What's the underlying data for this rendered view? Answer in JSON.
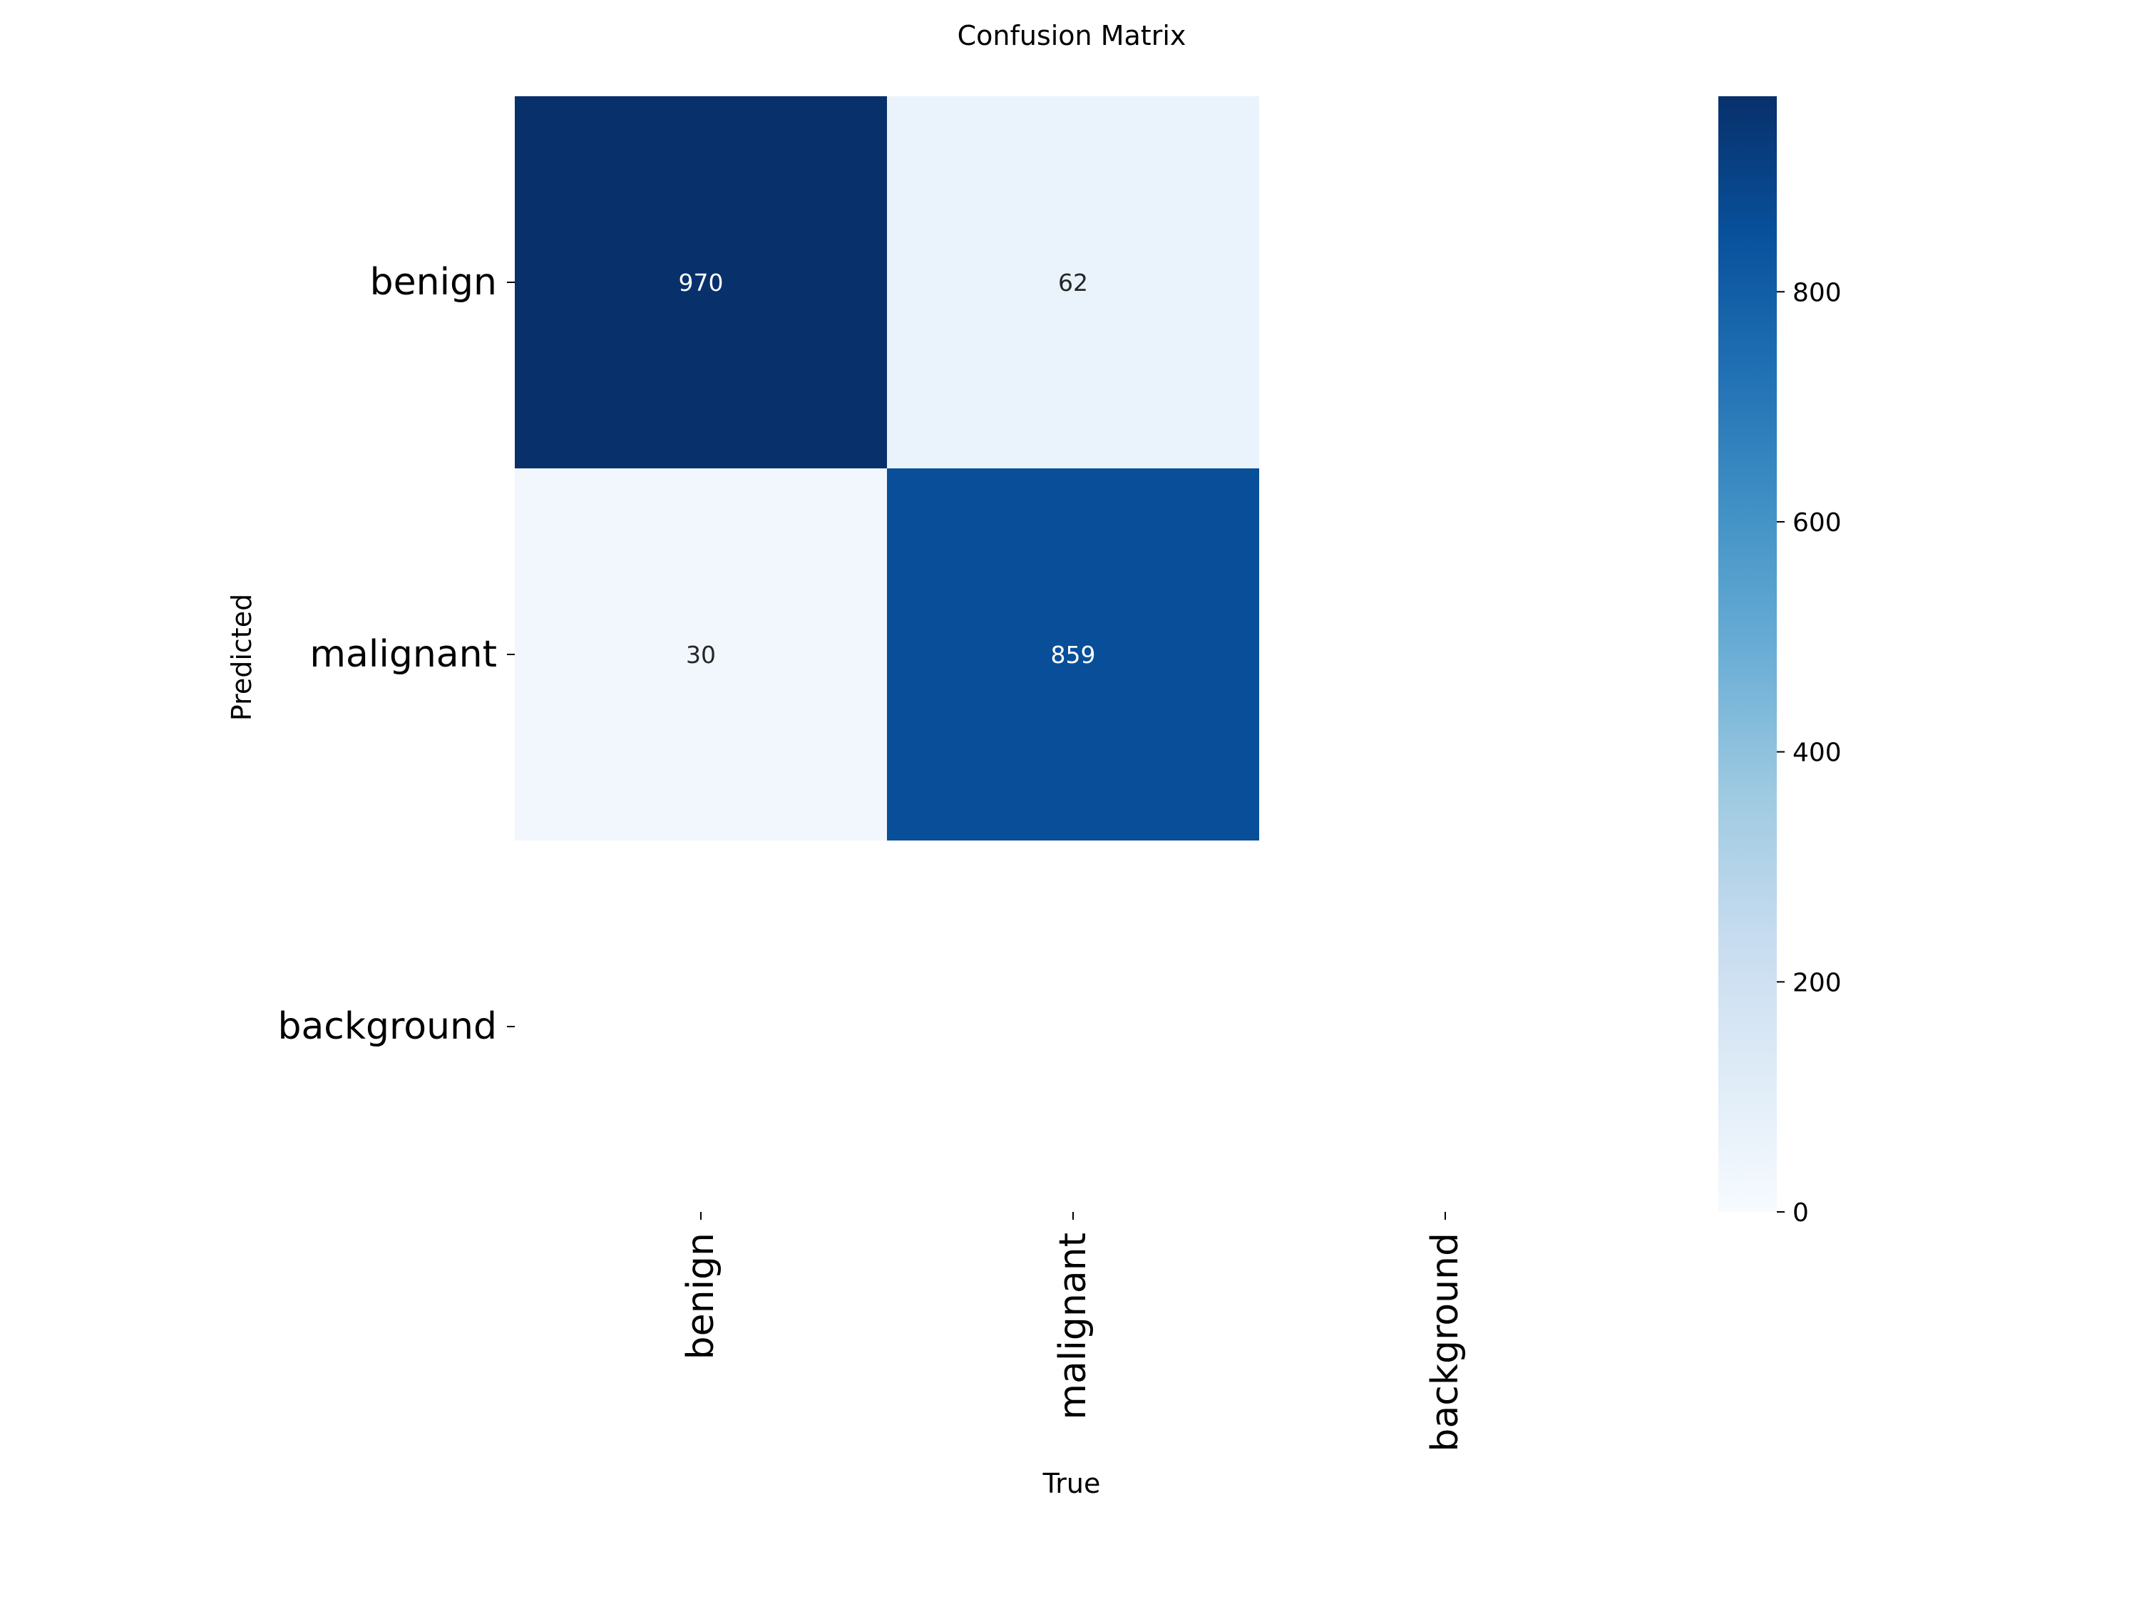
{
  "chart_data": {
    "type": "heatmap",
    "title": "Confusion Matrix",
    "xlabel": "True",
    "ylabel": "Predicted",
    "x_categories": [
      "benign",
      "malignant",
      "background"
    ],
    "y_categories": [
      "benign",
      "malignant",
      "background"
    ],
    "cells": [
      {
        "row": "benign",
        "col": "benign",
        "value": 970
      },
      {
        "row": "benign",
        "col": "malignant",
        "value": 62
      },
      {
        "row": "malignant",
        "col": "benign",
        "value": 30
      },
      {
        "row": "malignant",
        "col": "malignant",
        "value": 859
      }
    ],
    "colorscale": "Blues",
    "colorbar": {
      "min": 0,
      "max": 970,
      "ticks": [
        0,
        200,
        400,
        600,
        800
      ],
      "tick_labels": [
        "0",
        "200",
        "400",
        "600",
        "800"
      ]
    },
    "colors": {
      "scale_low": "#f7fbff",
      "scale_high": "#08306b"
    }
  }
}
